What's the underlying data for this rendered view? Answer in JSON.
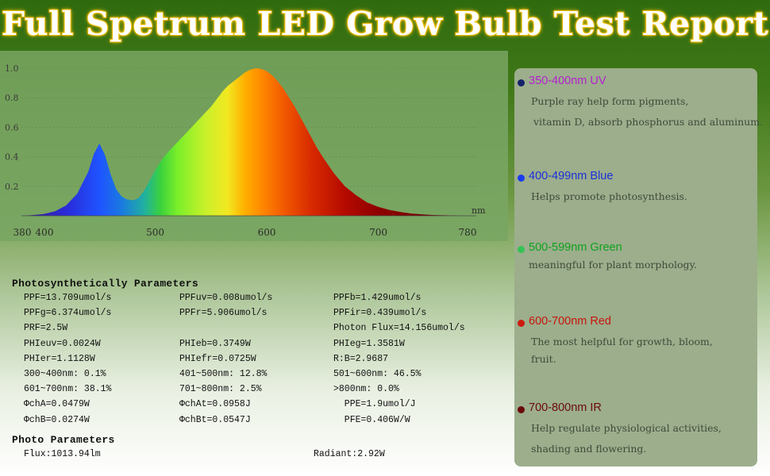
{
  "title": "Full Spetrum LED Grow Bulb Test Report",
  "chart_data": {
    "type": "area",
    "x_unit": "nm",
    "xlim": [
      380,
      780
    ],
    "ylim": [
      0,
      1.0
    ],
    "x_ticks": [
      380,
      400,
      500,
      600,
      700,
      780
    ],
    "y_ticks": [
      "0.2",
      "0.4",
      "0.6",
      "0.8",
      "1.0"
    ],
    "x": [
      380,
      390,
      400,
      410,
      420,
      430,
      440,
      445,
      450,
      455,
      460,
      465,
      470,
      475,
      480,
      485,
      490,
      495,
      500,
      505,
      510,
      515,
      520,
      525,
      530,
      535,
      540,
      545,
      550,
      555,
      560,
      565,
      570,
      575,
      580,
      585,
      590,
      595,
      600,
      605,
      610,
      615,
      620,
      625,
      630,
      635,
      640,
      645,
      650,
      660,
      670,
      680,
      690,
      700,
      710,
      720,
      730,
      740,
      750,
      760,
      770,
      780
    ],
    "y": [
      0.0,
      0.005,
      0.012,
      0.03,
      0.07,
      0.15,
      0.3,
      0.42,
      0.49,
      0.41,
      0.28,
      0.18,
      0.13,
      0.11,
      0.105,
      0.12,
      0.17,
      0.24,
      0.31,
      0.37,
      0.42,
      0.46,
      0.5,
      0.54,
      0.58,
      0.62,
      0.66,
      0.7,
      0.74,
      0.79,
      0.84,
      0.88,
      0.91,
      0.94,
      0.97,
      0.99,
      1.0,
      0.995,
      0.98,
      0.95,
      0.91,
      0.86,
      0.8,
      0.74,
      0.67,
      0.6,
      0.53,
      0.46,
      0.4,
      0.29,
      0.2,
      0.14,
      0.09,
      0.06,
      0.04,
      0.025,
      0.015,
      0.009,
      0.005,
      0.003,
      0.001,
      0.0
    ]
  },
  "photosynthetic": {
    "title": "Photosynthetically Parameters",
    "rows": [
      [
        "PPF=13.709umol/s",
        "PPFuv=0.008umol/s",
        "PPFb=1.429umol/s"
      ],
      [
        "PPFg=6.374umol/s",
        "PPFr=5.906umol/s",
        "PPFir=0.439umol/s"
      ],
      [
        "PRF=2.5W",
        "",
        "Photon Flux=14.156umol/s"
      ],
      [
        "PHIeuv=0.0024W",
        "PHIeb=0.3749W",
        "PHIeg=1.3581W"
      ],
      [
        "PHIer=1.1128W",
        "PHIefr=0.0725W",
        "R:B=2.9687"
      ],
      [
        "300~400nm: 0.1%",
        "401~500nm: 12.8%",
        "501~600nm: 46.5%"
      ],
      [
        "601~700nm: 38.1%",
        "701~800nm: 2.5%",
        ">800nm: 0.0%"
      ],
      [
        "ΦchA=0.0479W",
        "ΦchAt=0.0958J",
        "  PPE=1.9umol/J"
      ],
      [
        "ΦchB=0.0274W",
        "ΦchBt=0.0547J",
        "  PFE=0.406W/W"
      ]
    ]
  },
  "photo_params": {
    "title": "Photo Parameters",
    "flux": "Flux:1013.94lm",
    "radiant": "Radiant:2.92W"
  },
  "legend": [
    {
      "title": "350-400nm UV",
      "dot_color": "#14226a",
      "title_color": "#b61fd0",
      "lines": [
        "Purple ray help form pigments,",
        "vitamin D, absorb phosphorus and aluminum."
      ]
    },
    {
      "title": "400-499nm Blue",
      "dot_color": "#1a3cf0",
      "title_color": "#1a2fd8",
      "lines": [
        "Helps promote photosynthesis."
      ]
    },
    {
      "title": "500-599nm Green",
      "dot_color": "#35c255",
      "title_color": "#10a21f",
      "lines": [
        "meaningful for plant morphology."
      ]
    },
    {
      "title": "600-700nm Red",
      "dot_color": "#cc1a10",
      "title_color": "#c8150c",
      "lines": [
        "The most helpful for growth, bloom,",
        "fruit."
      ]
    },
    {
      "title": "700-800nm IR",
      "dot_color": "#6a0a0a",
      "title_color": "#6b0b0b",
      "lines": [
        "Help regulate physiological activities,",
        "shading and flowering."
      ]
    }
  ]
}
